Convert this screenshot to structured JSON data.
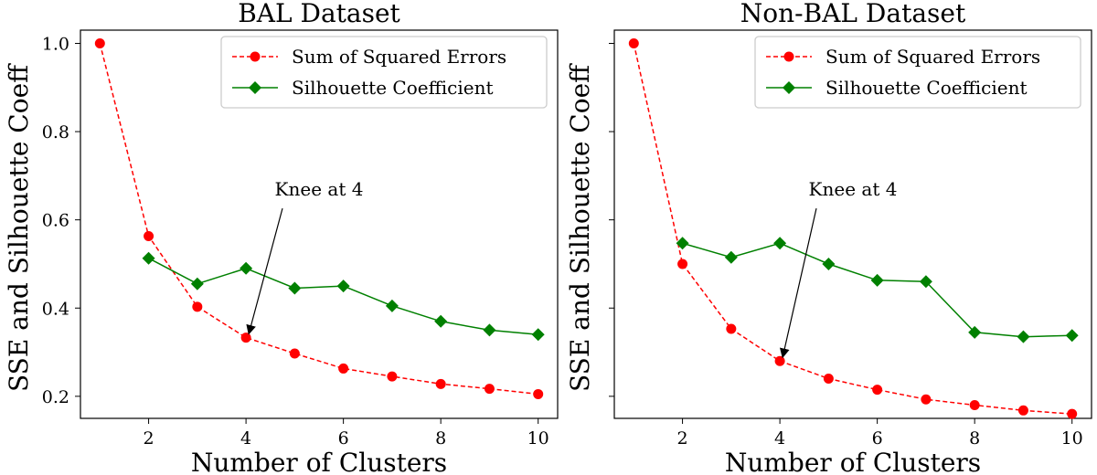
{
  "chart_data": [
    {
      "type": "line",
      "title": "BAL Dataset",
      "xlabel": "Number of Clusters",
      "ylabel": "SSE and Silhouette Coeff",
      "xlim": [
        0.6,
        10.4
      ],
      "ylim": [
        0.15,
        1.03
      ],
      "xticks": [
        2,
        4,
        6,
        8,
        10
      ],
      "yticks": [
        0.2,
        0.4,
        0.6,
        0.8,
        1.0
      ],
      "ytick_labels": [
        "0.2",
        "0.4",
        "0.6",
        "0.8",
        "1.0"
      ],
      "grid": false,
      "legend_position": "top-right",
      "series": [
        {
          "name": "Sum of Squared Errors",
          "color": "#ff0000",
          "style": "dashed",
          "marker": "circle",
          "x": [
            1,
            2,
            3,
            4,
            5,
            6,
            7,
            8,
            9,
            10
          ],
          "y": [
            1.0,
            0.563,
            0.403,
            0.333,
            0.297,
            0.263,
            0.245,
            0.228,
            0.217,
            0.205
          ]
        },
        {
          "name": "Silhouette Coefficient",
          "color": "#008000",
          "style": "solid",
          "marker": "diamond",
          "x": [
            2,
            3,
            4,
            5,
            6,
            7,
            8,
            9,
            10
          ],
          "y": [
            0.513,
            0.455,
            0.49,
            0.445,
            0.45,
            0.405,
            0.37,
            0.35,
            0.34
          ]
        }
      ],
      "annotation": {
        "text": "Knee at 4",
        "x": 4,
        "y": 0.333,
        "text_x": 5.5,
        "text_y": 0.655
      }
    },
    {
      "type": "line",
      "title": "Non-BAL Dataset",
      "xlabel": "Number of Clusters",
      "ylabel": "SSE and Silhouette Coeff",
      "xlim": [
        0.6,
        10.4
      ],
      "ylim": [
        0.15,
        1.03
      ],
      "xticks": [
        2,
        4,
        6,
        8,
        10
      ],
      "yticks": [
        0.2,
        0.4,
        0.6,
        0.8,
        1.0
      ],
      "ytick_labels": [],
      "grid": false,
      "legend_position": "top-right",
      "series": [
        {
          "name": "Sum of Squared Errors",
          "color": "#ff0000",
          "style": "dashed",
          "marker": "circle",
          "x": [
            1,
            2,
            3,
            4,
            5,
            6,
            7,
            8,
            9,
            10
          ],
          "y": [
            1.0,
            0.5,
            0.353,
            0.28,
            0.24,
            0.215,
            0.193,
            0.18,
            0.168,
            0.16
          ]
        },
        {
          "name": "Silhouette Coefficient",
          "color": "#008000",
          "style": "solid",
          "marker": "diamond",
          "x": [
            2,
            3,
            4,
            5,
            6,
            7,
            8,
            9,
            10
          ],
          "y": [
            0.547,
            0.515,
            0.547,
            0.5,
            0.463,
            0.46,
            0.345,
            0.335,
            0.338
          ]
        }
      ],
      "annotation": {
        "text": "Knee at 4",
        "x": 4,
        "y": 0.28,
        "text_x": 5.5,
        "text_y": 0.655
      }
    }
  ]
}
